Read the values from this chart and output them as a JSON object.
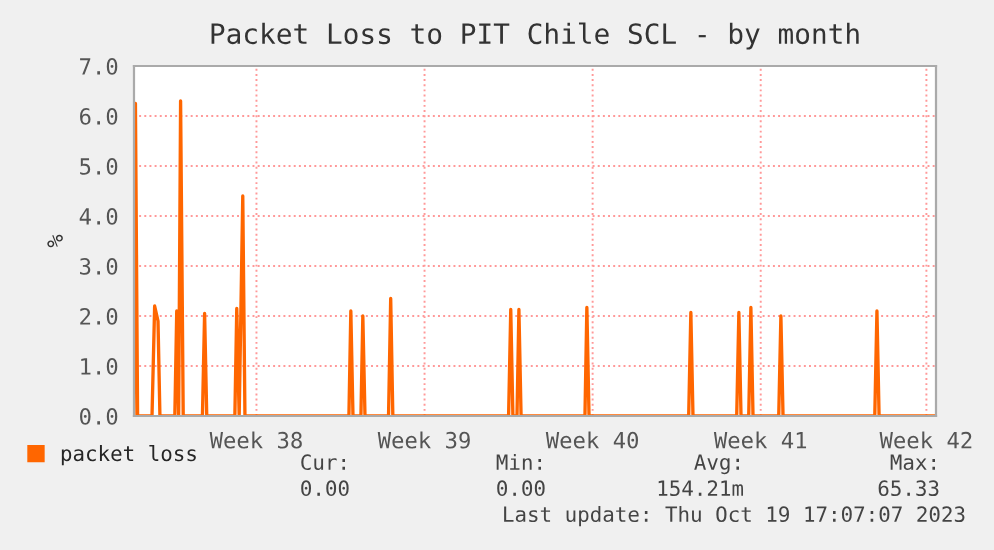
{
  "chart_data": {
    "type": "line",
    "title": "Packet Loss to PIT Chile SCL - by month",
    "ylabel": "%",
    "x": [
      "2023-09-16T07:00",
      "2023-09-16T08:26",
      "2023-09-16T10:36",
      "2023-09-17T01:00",
      "2023-09-17T03:38",
      "2023-09-17T07:00",
      "2023-09-17T08:55",
      "2023-09-17T23:48",
      "2023-09-18T01:43",
      "2023-09-18T03:38",
      "2023-09-18T05:34",
      "2023-09-18T08:12",
      "2023-09-19T03:24",
      "2023-09-19T05:34",
      "2023-09-19T07:43",
      "2023-09-20T11:48",
      "2023-09-20T13:43",
      "2023-09-20T16:07",
      "2023-09-20T19:43",
      "2023-09-20T21:53",
      "2023-09-25T05:48",
      "2023-09-25T07:43",
      "2023-09-25T09:53",
      "2023-09-25T17:48",
      "2023-09-25T19:43",
      "2023-09-25T21:53",
      "2023-09-26T21:24",
      "2023-09-26T23:34",
      "2023-09-27T01:43",
      "2023-10-01T21:24",
      "2023-10-01T23:34",
      "2023-10-02T01:43",
      "2023-10-02T05:48",
      "2023-10-02T07:43",
      "2023-10-02T09:53",
      "2023-10-05T01:43",
      "2023-10-05T03:38",
      "2023-10-05T05:48",
      "2023-10-09T09:24",
      "2023-10-09T11:34",
      "2023-10-09T13:43",
      "2023-10-11T09:24",
      "2023-10-11T11:34",
      "2023-10-11T13:43",
      "2023-10-11T21:24",
      "2023-10-11T23:34",
      "2023-10-12T01:43",
      "2023-10-13T03:24",
      "2023-10-13T05:34",
      "2023-10-13T07:43",
      "2023-10-17T03:24",
      "2023-10-17T05:34",
      "2023-10-17T07:43",
      "2023-10-19T16:36"
    ],
    "series": [
      {
        "name": "packet loss",
        "color": "#ff6600",
        "values": [
          0,
          6.25,
          0,
          0,
          2.2,
          1.9,
          0,
          0,
          2.1,
          0,
          6.3,
          0,
          0,
          2.05,
          0,
          0,
          2.15,
          0,
          4.4,
          0,
          0,
          2.1,
          0,
          0,
          2.0,
          0,
          0,
          2.35,
          0,
          0,
          2.13,
          0,
          0,
          2.13,
          0,
          0,
          2.17,
          0,
          0,
          2.07,
          0,
          0,
          2.07,
          0,
          0,
          2.17,
          0,
          0,
          2.0,
          0,
          0,
          2.1,
          0,
          0
        ]
      }
    ],
    "xlim": [
      "2023-09-16T07:00",
      "2023-10-19T16:36"
    ],
    "xticks": [
      {
        "value": "2023-09-21T09:24",
        "label": "Week 38"
      },
      {
        "value": "2023-09-28T09:24",
        "label": "Week 39"
      },
      {
        "value": "2023-10-05T09:24",
        "label": "Week 40"
      },
      {
        "value": "2023-10-12T09:24",
        "label": "Week 41"
      },
      {
        "value": "2023-10-19T07:00",
        "label": "Week 42"
      }
    ],
    "ylim": [
      0,
      7.0
    ],
    "yticks": [
      {
        "value": 0,
        "label": "0.0"
      },
      {
        "value": 1,
        "label": "1.0"
      },
      {
        "value": 2,
        "label": "2.0"
      },
      {
        "value": 3,
        "label": "3.0"
      },
      {
        "value": 4,
        "label": "4.0"
      },
      {
        "value": 5,
        "label": "5.0"
      },
      {
        "value": 6,
        "label": "6.0"
      },
      {
        "value": 7,
        "label": "7.0"
      }
    ],
    "grid": true,
    "legend": "bottom left",
    "annotations": [
      "Cur:",
      "Min:",
      "Avg:",
      "Max:",
      "0.00",
      "0.00",
      "154.21m",
      "65.33",
      "Last update: Thu Oct 19 17:07:07 2023"
    ]
  }
}
